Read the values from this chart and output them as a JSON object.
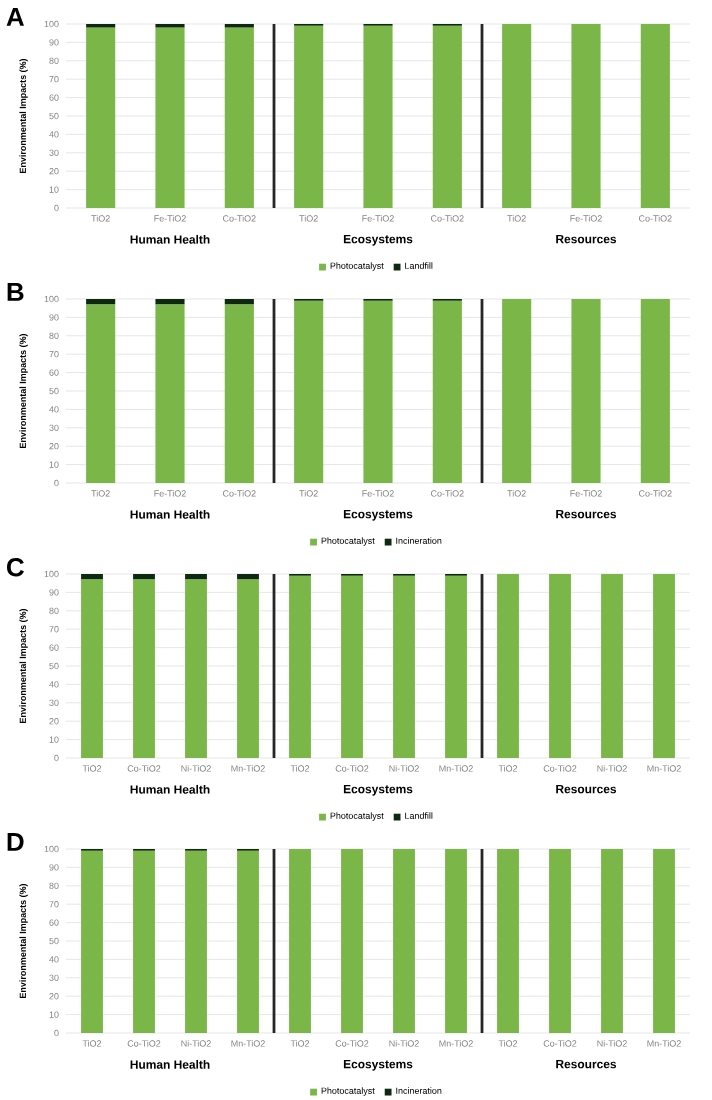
{
  "chart_data": [
    {
      "type": "bar",
      "title": "A",
      "stacked": true,
      "ylabel": "Environmental Impacts (%)",
      "categories": [
        "TiO2",
        "Fe-TiO2",
        "Co-TiO2",
        "TiO2",
        "Fe-TiO2",
        "Co-TiO2",
        "TiO2",
        "Fe-TiO2",
        "Co-TiO2"
      ],
      "annotations": [
        "Human Health",
        "Ecosystems",
        "Resources"
      ],
      "ylim": [
        0,
        100
      ],
      "yticks": [
        0,
        10,
        20,
        30,
        40,
        50,
        60,
        70,
        80,
        90,
        100
      ],
      "grid": "y",
      "legend": "bottom",
      "series": [
        {
          "name": "Photocatalyst",
          "color": "#7ab648",
          "values": [
            98,
            98,
            98,
            99,
            99,
            99,
            100,
            100,
            100
          ]
        },
        {
          "name": "Landfill",
          "color": "#0d2a10",
          "values": [
            2,
            2,
            2,
            1,
            1,
            1,
            0,
            0,
            0
          ]
        }
      ]
    },
    {
      "type": "bar",
      "title": "B",
      "stacked": true,
      "ylabel": "Environmental Impacts (%)",
      "categories": [
        "TiO2",
        "Fe-TiO2",
        "Co-TiO2",
        "TiO2",
        "Fe-TiO2",
        "Co-TiO2",
        "TiO2",
        "Fe-TiO2",
        "Co-TiO2"
      ],
      "annotations": [
        "Human Health",
        "Ecosystems",
        "Resources"
      ],
      "ylim": [
        0,
        100
      ],
      "yticks": [
        0,
        10,
        20,
        30,
        40,
        50,
        60,
        70,
        80,
        90,
        100
      ],
      "grid": "y",
      "legend": "bottom",
      "series": [
        {
          "name": "Photocatalyst",
          "color": "#7ab648",
          "values": [
            97,
            97,
            97,
            99,
            99,
            99,
            100,
            100,
            100
          ]
        },
        {
          "name": "Incineration",
          "color": "#0d2a10",
          "values": [
            3,
            3,
            3,
            1,
            1,
            1,
            0,
            0,
            0
          ]
        }
      ]
    },
    {
      "type": "bar",
      "title": "C",
      "stacked": true,
      "ylabel": "Environmental Impacts (%)",
      "categories": [
        "TiO2",
        "Co-TiO2",
        "Ni-TiO2",
        "Mn-TiO2",
        "TiO2",
        "Co-TiO2",
        "Ni-TiO2",
        "Mn-TiO2",
        "TiO2",
        "Co-TiO2",
        "Ni-TiO2",
        "Mn-TiO2"
      ],
      "annotations": [
        "Human Health",
        "Ecosystems",
        "Resources"
      ],
      "ylim": [
        0,
        100
      ],
      "yticks": [
        0,
        10,
        20,
        30,
        40,
        50,
        60,
        70,
        80,
        90,
        100
      ],
      "grid": "y",
      "legend": "bottom",
      "series": [
        {
          "name": "Photocatalyst",
          "color": "#7ab648",
          "values": [
            97,
            97,
            97,
            97,
            99,
            99,
            99,
            99,
            100,
            100,
            100,
            100
          ]
        },
        {
          "name": "Landfill",
          "color": "#0d2a10",
          "values": [
            3,
            3,
            3,
            3,
            1,
            1,
            1,
            1,
            0,
            0,
            0,
            0
          ]
        }
      ]
    },
    {
      "type": "bar",
      "title": "D",
      "stacked": true,
      "ylabel": "Environmental Impacts (%)",
      "categories": [
        "TiO2",
        "Co-TiO2",
        "Ni-TiO2",
        "Mn-TiO2",
        "TiO2",
        "Co-TiO2",
        "Ni-TiO2",
        "Mn-TiO2",
        "TiO2",
        "Co-TiO2",
        "Ni-TiO2",
        "Mn-TiO2"
      ],
      "annotations": [
        "Human Health",
        "Ecosystems",
        "Resources"
      ],
      "ylim": [
        0,
        100
      ],
      "yticks": [
        0,
        10,
        20,
        30,
        40,
        50,
        60,
        70,
        80,
        90,
        100
      ],
      "grid": "y",
      "legend": "bottom",
      "series": [
        {
          "name": "Photocatalyst",
          "color": "#7ab648",
          "values": [
            99,
            99,
            99,
            99,
            100,
            100,
            100,
            100,
            100,
            100,
            100,
            100
          ]
        },
        {
          "name": "Incineration",
          "color": "#0d2a10",
          "values": [
            1,
            1,
            1,
            1,
            0,
            0,
            0,
            0,
            0,
            0,
            0,
            0
          ]
        }
      ]
    }
  ]
}
